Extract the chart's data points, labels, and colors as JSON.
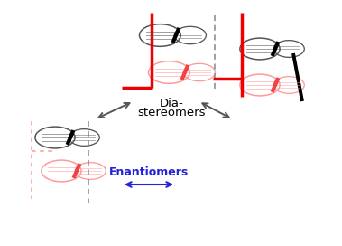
{
  "bg_color": "#ffffff",
  "black": "#000000",
  "red": "#ee0000",
  "pink": "#ff9999",
  "darkpink": "#ee4444",
  "gray": "#555555",
  "lightgray": "#888888",
  "blue": "#2222dd",
  "diastereomers_1": "Dia-",
  "diastereomers_2": "stereomers",
  "enantiomers": "Enantiomers"
}
